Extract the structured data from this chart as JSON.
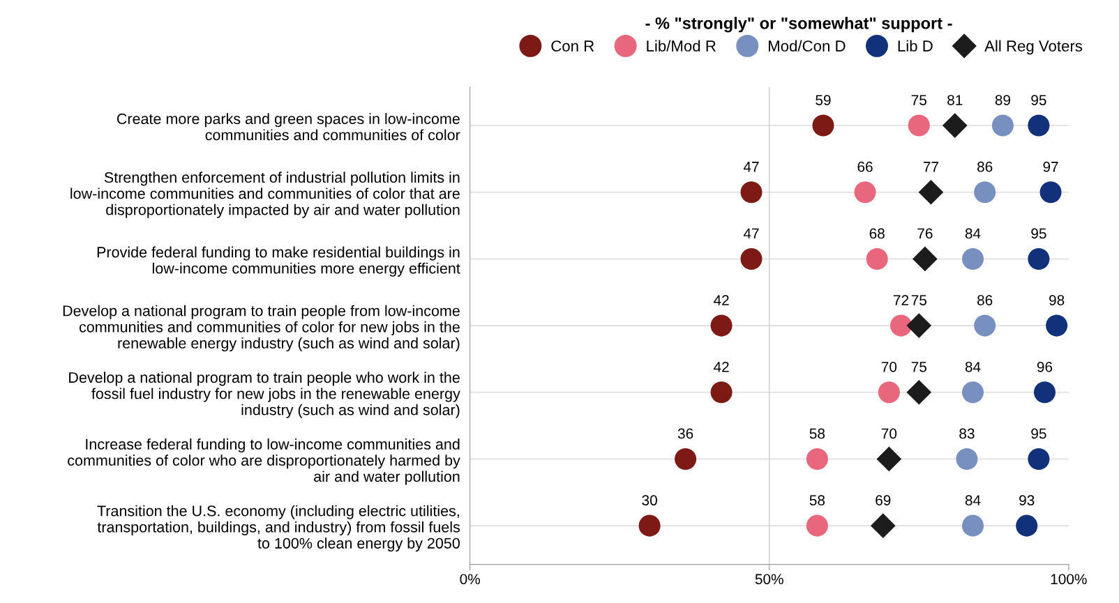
{
  "chart_data": {
    "type": "scatter",
    "orientation": "horizontal",
    "legend_title": "- % \"strongly\" or \"somewhat\" support -",
    "legend": "top right",
    "grid": "y",
    "ref_lines": [
      {
        "axis": "x",
        "value": 50,
        "color": "#cccccc"
      }
    ],
    "data_labels": true,
    "categories": [
      "Create more parks and green spaces in low-income\ncommunities and communities of color",
      "Strengthen enforcement of industrial pollution limits in\nlow-income communities and communities of color that are\ndisproportionately impacted by air and water pollution",
      "Provide federal funding to make residential buildings in\nlow-income communities more energy efficient",
      "Develop a national program to train people from low-income\ncommunities and communities of color for new jobs in the\nrenewable energy industry (such as wind and solar)",
      "Develop a national program to train people who work in the\nfossil fuel industry for new jobs in the renewable energy\nindustry (such as wind and solar)",
      "Increase federal funding to low-income communities and\ncommunities of color who are disproportionately harmed by\nair and water pollution",
      "Transition the U.S. economy (including electric utilities,\ntransportation, buildings, and industry) from fossil fuels\nto 100% clean energy by 2050"
    ],
    "series": [
      {
        "name": "Con R",
        "color": "#7d1a16",
        "marker": "circle",
        "values": [
          59,
          47,
          47,
          42,
          42,
          36,
          30
        ]
      },
      {
        "name": "Lib/Mod R",
        "color": "#e8677c",
        "marker": "circle",
        "values": [
          75,
          66,
          68,
          72,
          70,
          58,
          58
        ]
      },
      {
        "name": "Mod/Con D",
        "color": "#7890c0",
        "marker": "circle",
        "values": [
          89,
          86,
          84,
          86,
          84,
          83,
          84
        ]
      },
      {
        "name": "Lib D",
        "color": "#11317a",
        "marker": "circle",
        "values": [
          95,
          97,
          95,
          98,
          96,
          95,
          93
        ]
      },
      {
        "name": "All Reg Voters",
        "color": "#1c1c1c",
        "marker": "diamond",
        "values": [
          81,
          77,
          76,
          75,
          75,
          70,
          69
        ]
      }
    ],
    "xlim": [
      0,
      100
    ],
    "xticks": [
      {
        "value": 0,
        "label": "0%"
      },
      {
        "value": 50,
        "label": "50%"
      },
      {
        "value": 100,
        "label": "100%"
      }
    ]
  }
}
